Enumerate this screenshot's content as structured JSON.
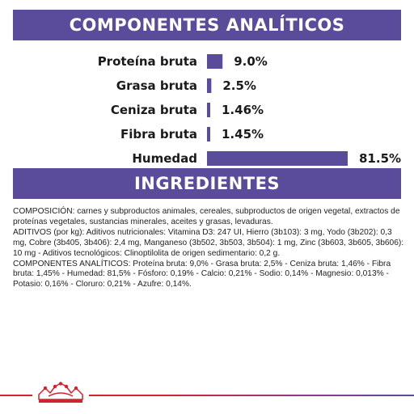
{
  "header": {
    "title": "COMPONENTES ANALÍTICOS"
  },
  "chart_data": {
    "type": "bar",
    "orientation": "horizontal",
    "title": "COMPONENTES ANALÍTICOS",
    "categories": [
      "Proteína bruta",
      "Grasa bruta",
      "Ceniza bruta",
      "Fibra bruta",
      "Humedad"
    ],
    "values": [
      9.0,
      2.5,
      1.46,
      1.45,
      81.5
    ],
    "value_labels": [
      "9.0%",
      "2.5%",
      "1.46%",
      "1.45%",
      "81.5%"
    ],
    "xlim": [
      0,
      81.5
    ],
    "grid": false,
    "bar_color": "#5a4c9a"
  },
  "ingredients": {
    "title": "INGREDIENTES",
    "paragraphs": [
      "COMPOSICIÓN: carnes y subproductos animales, cereales, subproductos de origen vegetal, extractos de proteínas vegetales, sustancias minerales, aceites y grasas, levaduras.",
      "ADITIVOS (por kg): Aditivos nutricionales: Vitamina D3: 247 UI, Hierro (3b103): 3 mg, Yodo (3b202): 0,3 mg, Cobre (3b405, 3b406): 2,4 mg, Manganeso (3b502, 3b503, 3b504): 1 mg, Zinc (3b603, 3b605, 3b606): 10 mg - Aditivos tecnológicos: Clinoptilolita de origen sedimentario: 0,2 g.",
      "COMPONENTES ANALÍTICOS: Proteína bruta: 9,0% - Grasa bruta: 2,5% - Ceniza bruta: 1,46% - Fibra bruta: 1,45% - Humedad: 81,5% - Fósforo: 0,19% - Calcio: 0,21% - Sodio: 0,14% - Magnesio: 0,013% - Potasio: 0,16% - Cloruro: 0,21% - Azufre: 0,14%."
    ]
  },
  "footer": {
    "logo_icon": "royal-canin-crown-icon",
    "accent_colors": [
      "#d4232f",
      "#5a4c9a"
    ]
  }
}
